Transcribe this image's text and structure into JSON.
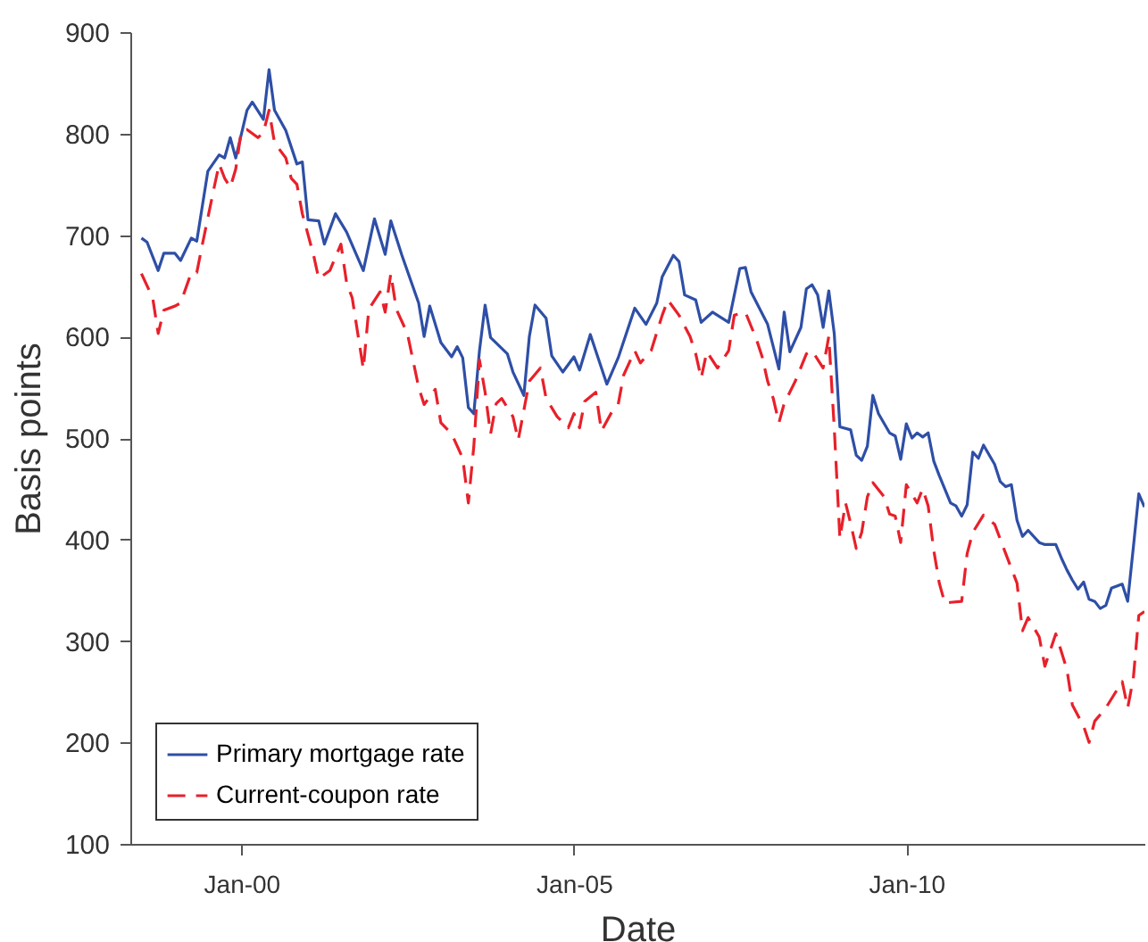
{
  "chart_data": {
    "type": "line",
    "xlabel": "Date",
    "ylabel": "Basis points",
    "xlim": [
      "1998-05",
      "2013-08"
    ],
    "ylim": [
      100,
      900
    ],
    "xticks": [
      {
        "value": "2000-01",
        "label": "Jan-00"
      },
      {
        "value": "2005-01",
        "label": "Jan-05"
      },
      {
        "value": "2010-01",
        "label": "Jan-10"
      }
    ],
    "yticks": [
      100,
      200,
      300,
      400,
      500,
      600,
      700,
      800,
      900
    ],
    "grid": false,
    "legend": "bottom left",
    "series": [
      {
        "name": "Primary mortgage rate",
        "color": "#2e4fa6",
        "line_style": "solid",
        "x": [
          "1998-07",
          "1998-08",
          "1998-10",
          "1998-11",
          "1999-01",
          "1999-02",
          "1999-04",
          "1999-05",
          "1999-07",
          "1999-09",
          "1999-10",
          "1999-11",
          "1999-12",
          "2000-02",
          "2000-03",
          "2000-05",
          "2000-06",
          "2000-07",
          "2000-09",
          "2000-11",
          "2000-12",
          "2001-01",
          "2001-03",
          "2001-04",
          "2001-06",
          "2001-08",
          "2001-11",
          "2002-01",
          "2002-03",
          "2002-04",
          "2002-06",
          "2002-09",
          "2002-10",
          "2002-11",
          "2003-01",
          "2003-03",
          "2003-04",
          "2003-05",
          "2003-06",
          "2003-07",
          "2003-08",
          "2003-09",
          "2003-10",
          "2004-01",
          "2004-02",
          "2004-04",
          "2004-05",
          "2004-06",
          "2004-08",
          "2004-09",
          "2004-11",
          "2005-01",
          "2005-02",
          "2005-04",
          "2005-07",
          "2005-09",
          "2005-12",
          "2006-02",
          "2006-04",
          "2006-05",
          "2006-07",
          "2006-08",
          "2006-09",
          "2006-11",
          "2006-12",
          "2007-02",
          "2007-05",
          "2007-07",
          "2007-08",
          "2007-09",
          "2007-12",
          "2008-02",
          "2008-03",
          "2008-04",
          "2008-06",
          "2008-07",
          "2008-08",
          "2008-09",
          "2008-10",
          "2008-11",
          "2008-12",
          "2009-01",
          "2009-03",
          "2009-04",
          "2009-05",
          "2009-06",
          "2009-07",
          "2009-08",
          "2009-10",
          "2009-11",
          "2009-12",
          "2010-01",
          "2010-02",
          "2010-03",
          "2010-04",
          "2010-05",
          "2010-06",
          "2010-07",
          "2010-09",
          "2010-10",
          "2010-11",
          "2010-12",
          "2011-01",
          "2011-02",
          "2011-03",
          "2011-05",
          "2011-06",
          "2011-07",
          "2011-08",
          "2011-09",
          "2011-10",
          "2011-11",
          "2012-01",
          "2012-02",
          "2012-04",
          "2012-05",
          "2012-06",
          "2012-07",
          "2012-08",
          "2012-09",
          "2012-10",
          "2012-11",
          "2012-12",
          "2013-01",
          "2013-02",
          "2013-04",
          "2013-05",
          "2013-06",
          "2013-07",
          "2013-08"
        ],
        "values": [
          697,
          693,
          665,
          682,
          682,
          675,
          697,
          694,
          763,
          779,
          776,
          796,
          776,
          823,
          831,
          814,
          863,
          823,
          803,
          770,
          772,
          715,
          714,
          691,
          721,
          703,
          665,
          716,
          681,
          714,
          680,
          633,
          600,
          630,
          594,
          580,
          590,
          579,
          530,
          524,
          586,
          631,
          599,
          583,
          565,
          542,
          600,
          631,
          618,
          581,
          565,
          580,
          567,
          602,
          553,
          579,
          628,
          612,
          633,
          659,
          680,
          674,
          641,
          636,
          614,
          624,
          614,
          667,
          668,
          644,
          612,
          568,
          624,
          585,
          609,
          647,
          651,
          641,
          609,
          645,
          603,
          511,
          508,
          483,
          478,
          492,
          542,
          524,
          505,
          502,
          479,
          514,
          500,
          505,
          501,
          505,
          477,
          463,
          436,
          433,
          423,
          434,
          486,
          480,
          493,
          474,
          457,
          452,
          454,
          419,
          403,
          409,
          397,
          395,
          395,
          382,
          370,
          360,
          351,
          358,
          341,
          339,
          332,
          335,
          352,
          356,
          339,
          392,
          445,
          432
        ]
      },
      {
        "name": "Current-coupon rate",
        "color": "#e8202a",
        "line_style": "dashed",
        "x": [
          "1998-07",
          "1998-09",
          "1998-10",
          "1998-11",
          "1999-01",
          "1999-02",
          "1999-04",
          "1999-05",
          "1999-06",
          "1999-08",
          "1999-09",
          "1999-10",
          "1999-11",
          "1999-12",
          "2000-01",
          "2000-02",
          "2000-04",
          "2000-05",
          "2000-06",
          "2000-07",
          "2000-09",
          "2000-10",
          "2000-11",
          "2000-12",
          "2001-02",
          "2001-03",
          "2001-05",
          "2001-07",
          "2001-08",
          "2001-09",
          "2001-11",
          "2001-12",
          "2002-02",
          "2002-03",
          "2002-04",
          "2002-05",
          "2002-07",
          "2002-09",
          "2002-10",
          "2002-12",
          "2003-01",
          "2003-03",
          "2003-04",
          "2003-05",
          "2003-06",
          "2003-07",
          "2003-08",
          "2003-09",
          "2003-10",
          "2003-11",
          "2003-12",
          "2004-02",
          "2004-03",
          "2004-05",
          "2004-07",
          "2004-08",
          "2004-10",
          "2004-12",
          "2005-01",
          "2005-02",
          "2005-03",
          "2005-05",
          "2005-06",
          "2005-08",
          "2005-09",
          "2005-10",
          "2005-12",
          "2006-01",
          "2006-03",
          "2006-05",
          "2006-06",
          "2006-08",
          "2006-10",
          "2006-11",
          "2006-12",
          "2007-01",
          "2007-03",
          "2007-05",
          "2007-06",
          "2007-08",
          "2007-10",
          "2007-11",
          "2007-12",
          "2008-01",
          "2008-02",
          "2008-03",
          "2008-05",
          "2008-07",
          "2008-08",
          "2008-10",
          "2008-11",
          "2008-12",
          "2009-01",
          "2009-02",
          "2009-03",
          "2009-04",
          "2009-05",
          "2009-06",
          "2009-07",
          "2009-09",
          "2009-10",
          "2009-11",
          "2009-12",
          "2010-01",
          "2010-03",
          "2010-04",
          "2010-05",
          "2010-06",
          "2010-07",
          "2010-08",
          "2010-09",
          "2010-11",
          "2010-12",
          "2011-01",
          "2011-03",
          "2011-05",
          "2011-07",
          "2011-09",
          "2011-10",
          "2011-11",
          "2012-01",
          "2012-02",
          "2012-04",
          "2012-06",
          "2012-07",
          "2012-09",
          "2012-10",
          "2012-11",
          "2013-01",
          "2013-03",
          "2013-04",
          "2013-05",
          "2013-06",
          "2013-07",
          "2013-08"
        ],
        "values": [
          662,
          638,
          603,
          626,
          630,
          633,
          663,
          663,
          691,
          744,
          770,
          756,
          747,
          765,
          803,
          804,
          796,
          801,
          823,
          791,
          776,
          756,
          750,
          721,
          680,
          657,
          665,
          691,
          653,
          638,
          568,
          627,
          644,
          624,
          662,
          627,
          603,
          550,
          533,
          548,
          515,
          504,
          492,
          480,
          436,
          492,
          577,
          545,
          504,
          534,
          539,
          521,
          498,
          556,
          569,
          539,
          521,
          510,
          524,
          510,
          536,
          545,
          507,
          527,
          533,
          562,
          586,
          574,
          586,
          621,
          636,
          621,
          600,
          583,
          559,
          585,
          569,
          586,
          621,
          624,
          597,
          580,
          556,
          539,
          515,
          534,
          556,
          583,
          586,
          569,
          600,
          510,
          401,
          436,
          416,
          391,
          407,
          442,
          456,
          442,
          425,
          423,
          397,
          454,
          436,
          450,
          433,
          389,
          357,
          337,
          338,
          339,
          386,
          407,
          424,
          415,
          386,
          357,
          310,
          323,
          304,
          275,
          307,
          272,
          237,
          216,
          200,
          221,
          234,
          251,
          260,
          234,
          263,
          325,
          329
        ]
      }
    ]
  }
}
